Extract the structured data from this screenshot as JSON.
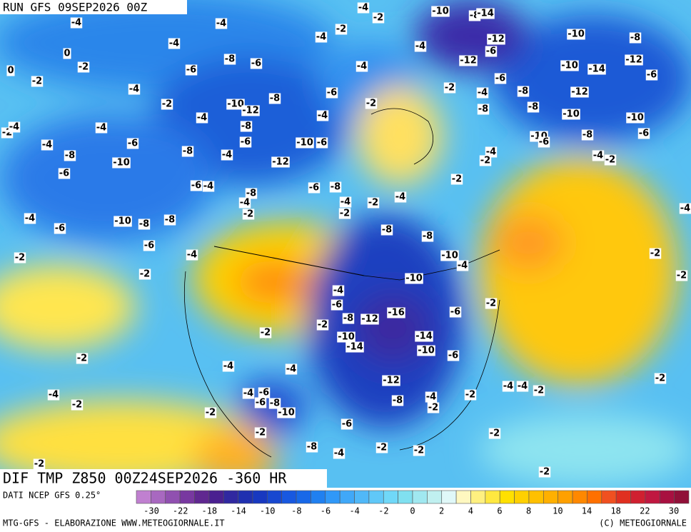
{
  "header": {
    "run": "RUN GFS 09SEP2026 00Z"
  },
  "product": "DIF TMP Z850 00Z24SEP2026 -360 HR",
  "source": "DATI NCEP GFS 0.25°",
  "credit_left": "MTG-GFS - ELABORAZIONE WWW.METEOGIORNALE.IT",
  "credit_right": "(C) METEOGIORNALE",
  "colorbar": {
    "colors": [
      "#c080d0",
      "#a868c0",
      "#9050b0",
      "#7838a0",
      "#602890",
      "#4a2090",
      "#3028a0",
      "#2030b0",
      "#1838c0",
      "#1848d0",
      "#1858e0",
      "#1868e8",
      "#2080f0",
      "#3098f8",
      "#40a8f8",
      "#50b8f8",
      "#60c8f8",
      "#70d8f8",
      "#80e0f0",
      "#a0e8f0",
      "#c0f0f0",
      "#e0f8f8",
      "#fff8c0",
      "#fff080",
      "#ffe840",
      "#ffe000",
      "#ffd000",
      "#ffc000",
      "#ffb000",
      "#ffa000",
      "#ff8800",
      "#ff7000",
      "#f05020",
      "#e03020",
      "#d02030",
      "#c01840",
      "#a81040",
      "#901038"
    ],
    "ticks": [
      -30,
      -22,
      -18,
      -14,
      -10,
      -8,
      -6,
      -4,
      -2,
      0,
      2,
      4,
      6,
      8,
      10,
      14,
      18,
      22,
      30
    ]
  },
  "contour_labels": [
    -4,
    -4,
    -4,
    -2,
    -4,
    -2,
    -10,
    -8,
    -14,
    -4,
    -12,
    -6,
    -10,
    -8,
    -12,
    -10,
    -14,
    -6,
    -12,
    -10,
    -10,
    -6,
    -8,
    -10,
    -6,
    -8,
    -8,
    -8,
    -6,
    -4,
    -2,
    -12,
    0,
    0,
    -2,
    -2,
    -4,
    -6,
    -8,
    -6,
    -4,
    -6,
    -2,
    -4,
    -2,
    -10,
    -12,
    -8,
    -4,
    -4,
    -8,
    -6,
    -10,
    -6,
    -4,
    -6,
    -8,
    -4,
    -12,
    -4,
    -8,
    -10,
    -6,
    -2,
    -4,
    -6,
    -4,
    -8,
    -4,
    -2,
    -6,
    -8,
    -4,
    -2,
    -2,
    -4,
    -4,
    -2,
    -2,
    -4,
    -2,
    -4,
    -6,
    -10,
    -8,
    -8,
    -6,
    -4,
    -2,
    -2,
    -8,
    -8,
    -10,
    -4,
    -10,
    -4,
    -6,
    -8,
    -12,
    -16,
    -6,
    -2,
    -2,
    -2,
    -4,
    -2,
    -2,
    -10,
    -14,
    -14,
    -10,
    -6,
    -2,
    -4,
    -4,
    -12,
    -8,
    -4,
    -2,
    -2,
    -4,
    -4,
    -2,
    -2,
    -4,
    -2,
    -4,
    -6,
    -6,
    -8,
    -10,
    -2,
    -2,
    -6,
    -8,
    -4,
    -2,
    -2,
    -2,
    -2,
    -2
  ]
}
